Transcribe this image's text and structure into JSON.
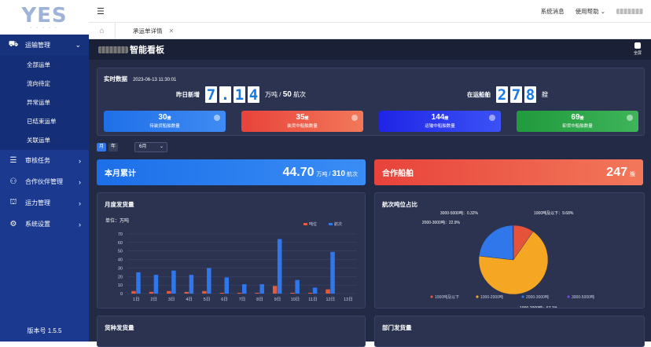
{
  "logo": {
    "text": "YES"
  },
  "sidebar": {
    "menu": [
      {
        "label": "运输管理",
        "icon": "truck-icon",
        "chev": "⌄",
        "open": true,
        "children": [
          "全部运单",
          "流向待定",
          "异常运单",
          "已结束运单",
          "关联运单"
        ]
      },
      {
        "label": "审核任务",
        "icon": "checklist-icon",
        "chev": "›"
      },
      {
        "label": "合作伙伴管理",
        "icon": "partner-icon",
        "chev": "›"
      },
      {
        "label": "运力管理",
        "icon": "capacity-icon",
        "chev": "›"
      },
      {
        "label": "系统设置",
        "icon": "gear-icon",
        "chev": "›"
      }
    ],
    "version": "版本号 1.5.5"
  },
  "topbar": {
    "msg": "系统消息",
    "help": "使用帮助",
    "help_chev": "⌄"
  },
  "tabs": [
    {
      "label": "承运单详情",
      "close": "✕"
    }
  ],
  "dashboard": {
    "title": "智能看板",
    "fullscreen": "全屏",
    "realtime": {
      "label": "实时数据",
      "time": "2023-06-13 11:30:01",
      "yesterday_label": "昨日新增",
      "yesterday_digits": [
        "7",
        ".",
        "1",
        "4"
      ],
      "yesterday_unit": "万吨",
      "yesterday_sep": "/",
      "yesterday_voyages": "50",
      "yesterday_voyage_unit": "航次",
      "inport_label": "在运船舶",
      "inport_digits": [
        "2",
        "7",
        "8"
      ],
      "inport_unit": "艘",
      "stats": [
        {
          "num": "30",
          "unit": "艘",
          "cap": "待装货船舶数量",
          "color": "#1f6fe8",
          "color2": "#3f8bf2"
        },
        {
          "num": "35",
          "unit": "艘",
          "cap": "装货中船舶数量",
          "color": "#e8433a",
          "color2": "#f2785a"
        },
        {
          "num": "144",
          "unit": "艘",
          "cap": "运输中船舶数量",
          "color": "#1f24e6",
          "color2": "#3b52f5"
        },
        {
          "num": "69",
          "unit": "艘",
          "cap": "卸货中船舶数量",
          "color": "#1f9a3c",
          "color2": "#3fb45a"
        }
      ]
    },
    "period": {
      "month": "月",
      "year": "年",
      "selected": "6月",
      "dd": "⌄"
    },
    "monthly": {
      "title": "本月累计",
      "value": "44.70",
      "unit": "万吨",
      "sep": "/",
      "voyages": "310",
      "voyage_unit": "航次"
    },
    "partner": {
      "title": "合作船舶",
      "value": "247",
      "unit": "艘"
    },
    "bar_panel_title": "月度发货量",
    "pie_panel_title": "航次吨位占比",
    "bottom_left_title": "货种发货量",
    "bottom_right_title": "部门发货量"
  },
  "chart_data": [
    {
      "type": "bar",
      "ylabel": "单位：万吨",
      "ylim": [
        0,
        70
      ],
      "yticks": [
        "0",
        "10",
        "20",
        "30",
        "40",
        "50",
        "60",
        "70"
      ],
      "legend_position": "top-right",
      "categories": [
        "1日",
        "2日",
        "3日",
        "4日",
        "5日",
        "6日",
        "7日",
        "8日",
        "9日",
        "10日",
        "11日",
        "12日",
        "13日"
      ],
      "series": [
        {
          "name": "吨位",
          "color": "#e55a3b",
          "values": [
            3,
            2,
            3,
            2,
            3,
            1,
            1,
            1,
            9,
            1,
            1,
            5,
            0
          ]
        },
        {
          "name": "航次",
          "color": "#2f77ea",
          "values": [
            25,
            22,
            27,
            22,
            30,
            19,
            11,
            11,
            64,
            16,
            7,
            49,
            0
          ]
        }
      ]
    },
    {
      "type": "pie",
      "slices": [
        {
          "name": "1000吨及以下",
          "value": 9.68,
          "color": "#e5533b",
          "label": "1000吨及以下：9.68%"
        },
        {
          "name": "1000-2000吨",
          "value": 67.1,
          "color": "#f5a623",
          "label": "1000-2000吨：67.1%"
        },
        {
          "name": "2000-3000吨",
          "value": 22.9,
          "color": "#2f77ea",
          "label": "2000-3000吨：22.9%"
        },
        {
          "name": "3000-5000吨",
          "value": 0.32,
          "color": "#6b4bd8",
          "label": "3000-5000吨：0.32%"
        }
      ],
      "legend_position": "bottom"
    }
  ]
}
